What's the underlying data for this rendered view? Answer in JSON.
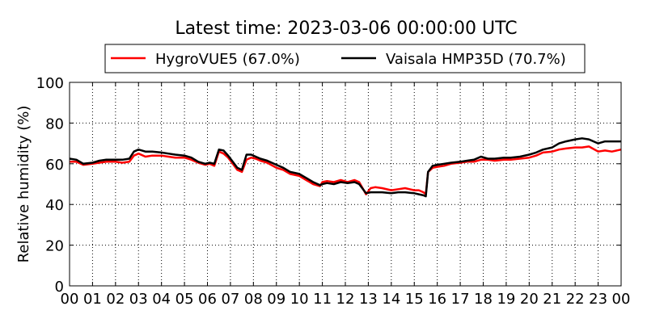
{
  "chart_data": {
    "type": "line",
    "title": "Latest time: 2023-03-06 00:00:00 UTC",
    "ylabel": "Relative humidity (%)",
    "xlabel": "",
    "xlim": [
      0,
      24
    ],
    "ylim": [
      0,
      100
    ],
    "x_ticks": [
      "00",
      "01",
      "02",
      "03",
      "04",
      "05",
      "06",
      "07",
      "08",
      "09",
      "10",
      "11",
      "12",
      "13",
      "14",
      "15",
      "16",
      "17",
      "18",
      "19",
      "20",
      "21",
      "22",
      "23",
      "00"
    ],
    "y_ticks": [
      0,
      20,
      40,
      60,
      80,
      100
    ],
    "grid": true,
    "legend_position": "top-center",
    "series": [
      {
        "name": "HygroVUE5 (67.0%)",
        "color": "#ff0000",
        "x": [
          0,
          0.3,
          0.6,
          1,
          1.3,
          1.6,
          2,
          2.3,
          2.6,
          2.8,
          3,
          3.3,
          3.6,
          4,
          4.3,
          4.6,
          5,
          5.3,
          5.6,
          5.9,
          6.1,
          6.3,
          6.5,
          6.7,
          6.9,
          7.1,
          7.3,
          7.5,
          7.7,
          7.9,
          8.1,
          8.3,
          8.6,
          9,
          9.3,
          9.6,
          10,
          10.3,
          10.6,
          10.9,
          11,
          11.2,
          11.5,
          11.8,
          12.1,
          12.4,
          12.6,
          12.9,
          13.1,
          13.3,
          13.6,
          14,
          14.3,
          14.6,
          15,
          15.2,
          15.4,
          15.5,
          15.6,
          15.8,
          16,
          16.3,
          16.6,
          17,
          17.3,
          17.6,
          17.9,
          18.2,
          18.5,
          18.9,
          19.2,
          19.6,
          20,
          20.3,
          20.6,
          21,
          21.3,
          21.6,
          22,
          22.3,
          22.6,
          23,
          23.3,
          23.6,
          24
        ],
        "y": [
          61,
          61,
          59.5,
          60,
          60.5,
          61,
          61,
          60.5,
          61,
          64,
          65,
          63.5,
          64,
          64,
          63.5,
          63,
          63,
          62,
          60.5,
          59.5,
          60,
          59,
          66,
          65,
          63,
          60,
          57,
          56,
          62,
          63,
          62.5,
          61.5,
          60.5,
          58,
          57,
          55,
          54,
          52,
          50,
          49,
          51,
          51.5,
          51,
          52,
          51,
          52,
          51,
          45,
          48,
          48.5,
          48,
          47,
          47.5,
          48,
          47,
          47,
          46,
          45,
          56,
          58,
          58.5,
          59,
          60,
          60.5,
          61,
          61,
          62,
          62,
          61.5,
          62,
          62,
          62.5,
          63,
          64,
          65.5,
          66,
          67,
          67.5,
          68,
          68,
          68.5,
          66,
          66.5,
          66,
          67
        ]
      },
      {
        "name": "Vaisala HMP35D (70.7%)",
        "color": "#000000",
        "x": [
          0,
          0.3,
          0.6,
          1,
          1.3,
          1.6,
          2,
          2.3,
          2.6,
          2.8,
          3,
          3.3,
          3.6,
          4,
          4.3,
          4.6,
          5,
          5.3,
          5.6,
          5.9,
          6.1,
          6.3,
          6.5,
          6.7,
          6.9,
          7.1,
          7.3,
          7.5,
          7.7,
          7.9,
          8.1,
          8.3,
          8.6,
          9,
          9.3,
          9.6,
          10,
          10.3,
          10.6,
          10.9,
          11,
          11.2,
          11.5,
          11.8,
          12.1,
          12.4,
          12.6,
          12.9,
          13.1,
          13.3,
          13.6,
          14,
          14.3,
          14.6,
          15,
          15.2,
          15.4,
          15.5,
          15.6,
          15.8,
          16,
          16.3,
          16.6,
          17,
          17.3,
          17.6,
          17.9,
          18.2,
          18.5,
          18.9,
          19.2,
          19.6,
          20,
          20.3,
          20.6,
          21,
          21.3,
          21.6,
          22,
          22.3,
          22.6,
          23,
          23.3,
          23.6,
          24
        ],
        "y": [
          62.5,
          62,
          60,
          60.5,
          61.5,
          62,
          62,
          62,
          62.5,
          66,
          67,
          66,
          66,
          65.5,
          65,
          64.5,
          64,
          63,
          61,
          60,
          60.5,
          60,
          67,
          66.5,
          64,
          61,
          58,
          57,
          64.5,
          64.5,
          63.5,
          62.5,
          61.5,
          59.5,
          58,
          56,
          55,
          53,
          51,
          49.5,
          50,
          50.5,
          50,
          51,
          50.5,
          51,
          50,
          45.5,
          46,
          46,
          46,
          45.5,
          46,
          46,
          45.5,
          45,
          44.5,
          44,
          56,
          59,
          59.5,
          60,
          60.5,
          61,
          61.5,
          62,
          63.5,
          62.5,
          62.5,
          63,
          63,
          63.5,
          64.5,
          65.5,
          67,
          68,
          70,
          71,
          72,
          72.5,
          72,
          70,
          71,
          71,
          71
        ]
      }
    ]
  }
}
